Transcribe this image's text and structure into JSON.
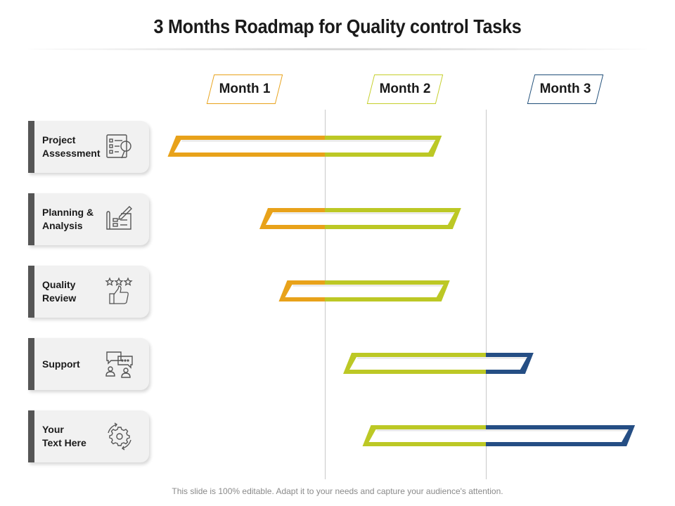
{
  "title": "3 Months Roadmap for Quality control Tasks",
  "months": [
    "Month 1",
    "Month 2",
    "Month 3"
  ],
  "tasks": [
    {
      "line1": "Project",
      "line2": "Assessment",
      "icon": "assessment-icon"
    },
    {
      "line1": "Planning &",
      "line2": "Analysis",
      "icon": "planning-icon"
    },
    {
      "line1": "Quality",
      "line2": "Review",
      "icon": "quality-review-icon"
    },
    {
      "line1": "Support",
      "line2": "",
      "icon": "support-icon"
    },
    {
      "line1": "Your",
      "line2": "Text Here",
      "icon": "gear-icon"
    }
  ],
  "chart_data": {
    "type": "gantt",
    "axis_unit": "month",
    "xlim": [
      0,
      3
    ],
    "month_labels": [
      "Month 1",
      "Month 2",
      "Month 3"
    ],
    "rows": [
      {
        "task": "Project Assessment",
        "start": 0.05,
        "end": 1.7
      },
      {
        "task": "Planning & Analysis",
        "start": 0.62,
        "end": 1.82
      },
      {
        "task": "Quality Review",
        "start": 0.74,
        "end": 1.75
      },
      {
        "task": "Support",
        "start": 1.14,
        "end": 2.27
      },
      {
        "task": "Your Text Here",
        "start": 1.26,
        "end": 2.9
      }
    ],
    "colors": {
      "month1": "#E8A21A",
      "month2": "#BCC825",
      "month3": "#254E84",
      "month3_box": "#1F4E79"
    }
  },
  "footer": "This slide is 100% editable. Adapt it to your needs and capture your audience's attention."
}
